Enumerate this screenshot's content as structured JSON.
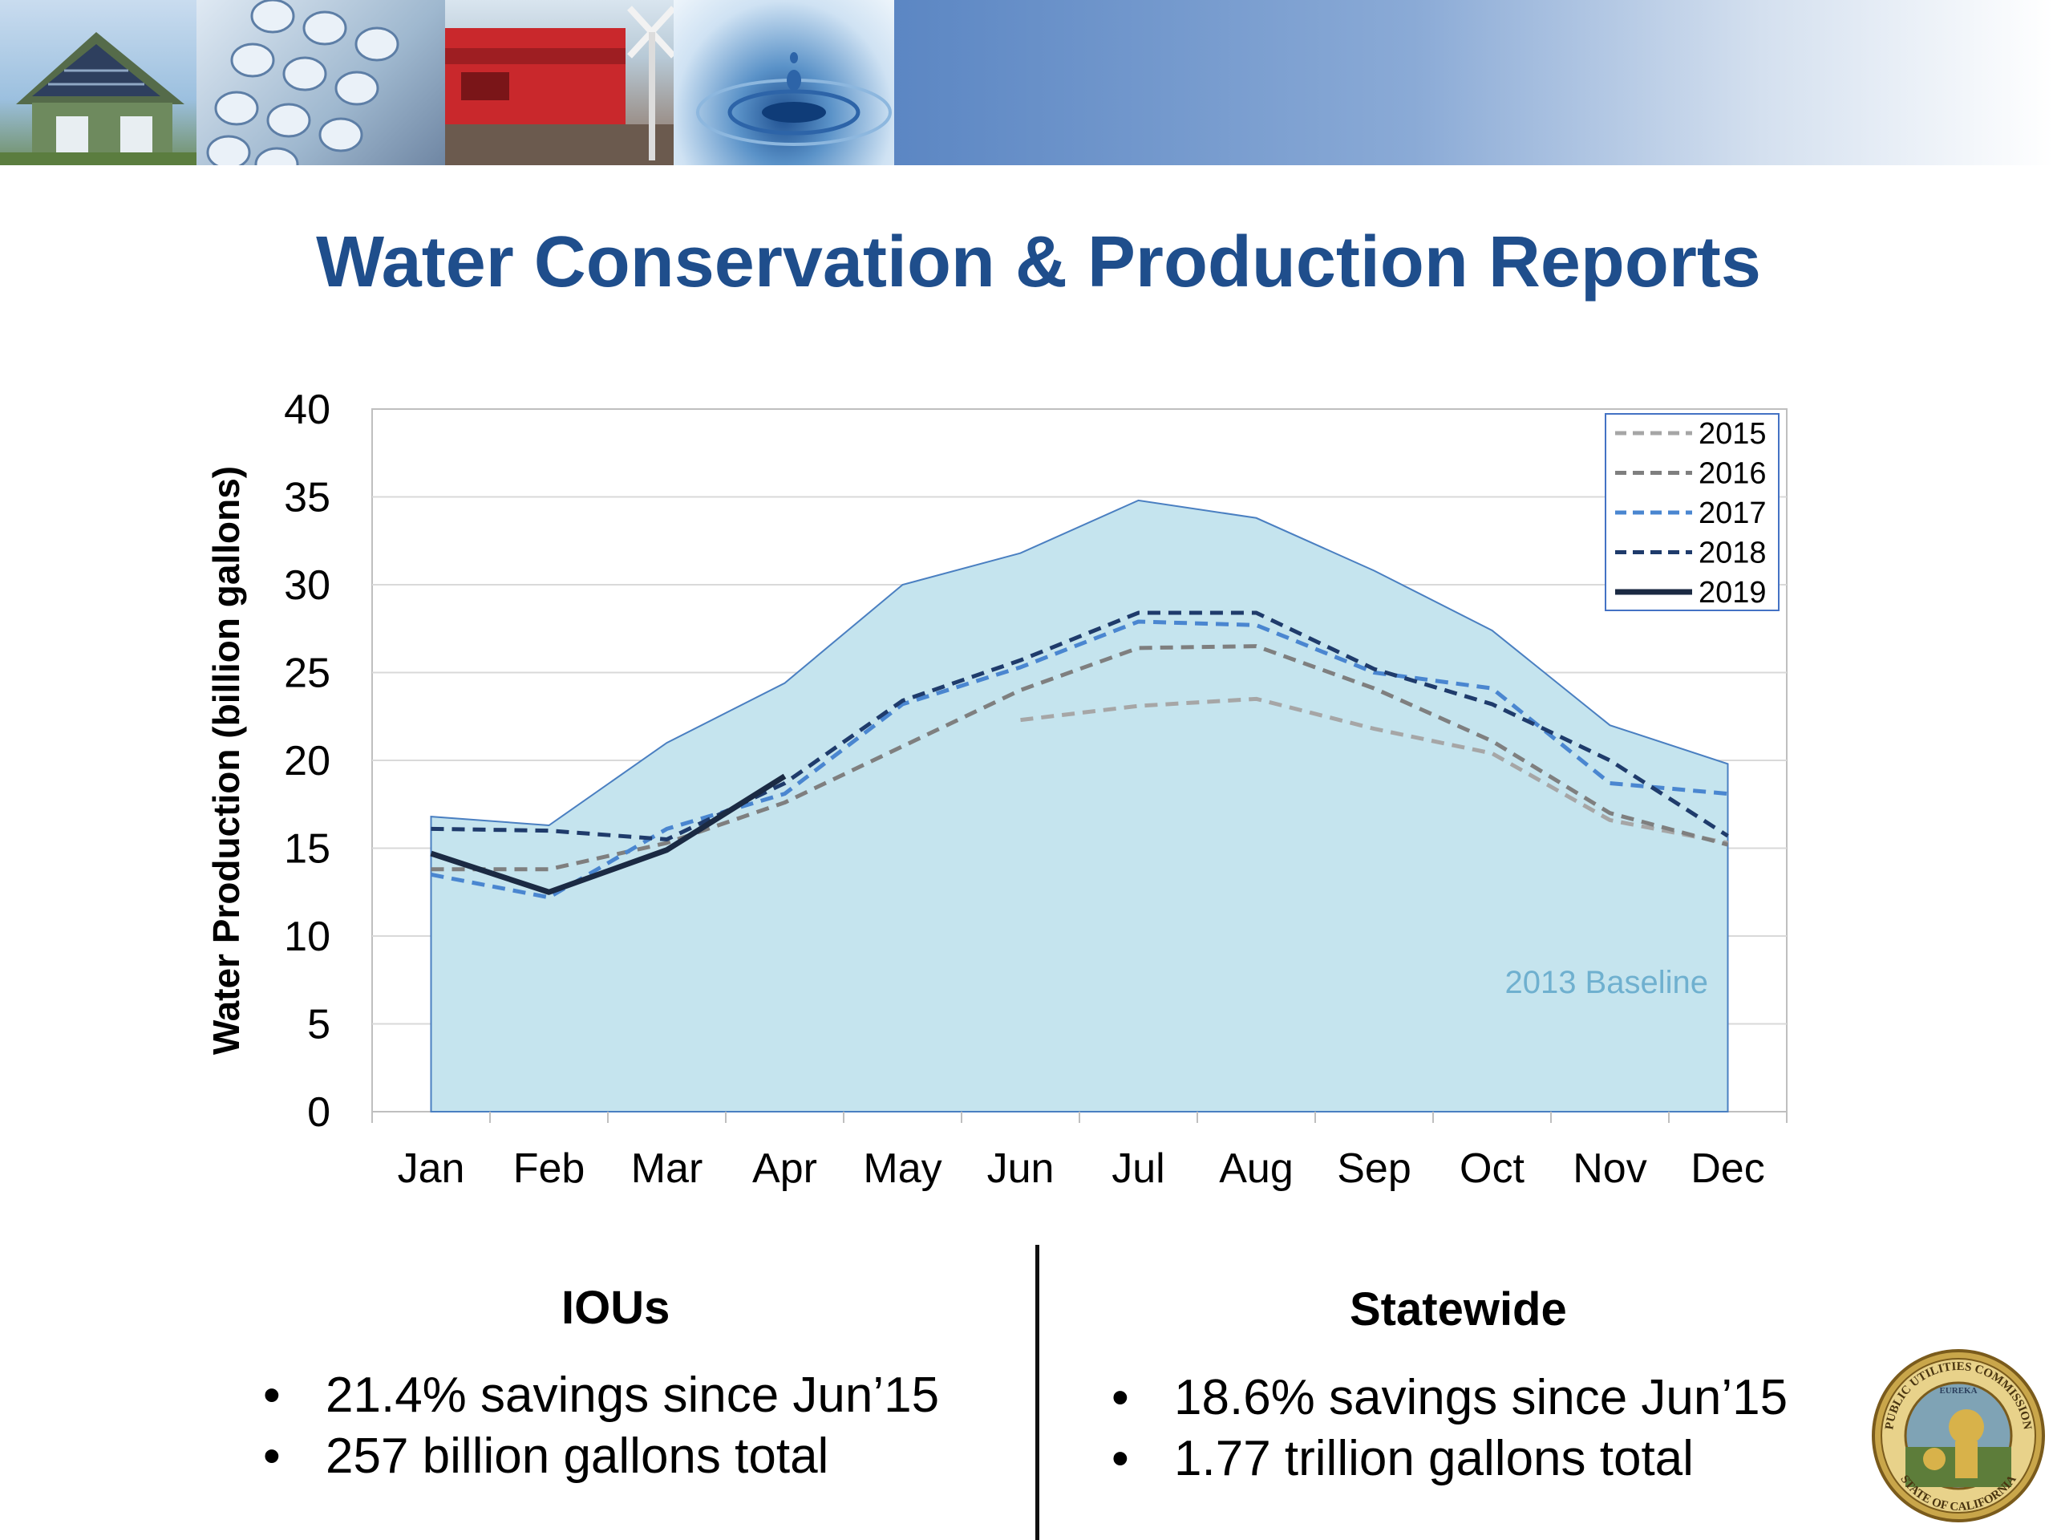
{
  "title": "Water Conservation & Production Reports",
  "chart_data": {
    "type": "line",
    "ylabel": "Water Production (billion gallons)",
    "xlabel": "",
    "ylim": [
      0,
      40
    ],
    "yticks": [
      0,
      5,
      10,
      15,
      20,
      25,
      30,
      35,
      40
    ],
    "categories": [
      "Jan",
      "Feb",
      "Mar",
      "Apr",
      "May",
      "Jun",
      "Jul",
      "Aug",
      "Sep",
      "Oct",
      "Nov",
      "Dec"
    ],
    "baseline": {
      "label": "2013 Baseline",
      "color": "#c5e4ee",
      "values": [
        16.8,
        16.3,
        21.0,
        24.4,
        30.0,
        31.8,
        34.8,
        33.8,
        30.8,
        27.4,
        22.0,
        19.8
      ]
    },
    "series": [
      {
        "name": "2015",
        "color": "#a6a6a6",
        "dash": "dashed",
        "values": [
          null,
          null,
          null,
          null,
          null,
          22.3,
          23.1,
          23.5,
          21.8,
          20.4,
          16.6,
          15.3
        ]
      },
      {
        "name": "2016",
        "color": "#7f7f7f",
        "dash": "dashed",
        "values": [
          13.8,
          13.8,
          15.3,
          17.6,
          20.8,
          24.0,
          26.4,
          26.5,
          24.1,
          21.1,
          17.0,
          15.2
        ]
      },
      {
        "name": "2017",
        "color": "#4a86d0",
        "dash": "dashed",
        "values": [
          13.5,
          12.2,
          16.1,
          18.1,
          23.2,
          25.3,
          27.9,
          27.7,
          25.0,
          24.1,
          18.7,
          18.1
        ]
      },
      {
        "name": "2018",
        "color": "#1f3b6b",
        "dash": "dashed",
        "values": [
          16.1,
          16.0,
          15.5,
          18.7,
          23.4,
          25.7,
          28.4,
          28.4,
          25.2,
          23.2,
          20.0,
          15.7
        ]
      },
      {
        "name": "2019",
        "color": "#1b2a43",
        "dash": "solid",
        "values": [
          14.7,
          12.5,
          14.9,
          19.1,
          null,
          null,
          null,
          null,
          null,
          null,
          null,
          null
        ]
      }
    ],
    "grid": true,
    "legend": "top-right"
  },
  "ious": {
    "heading": "IOUs",
    "bullets": [
      "21.4% savings since Jun’15",
      "257 billion gallons total"
    ]
  },
  "statewide": {
    "heading": "Statewide",
    "bullets": [
      "18.6% savings since Jun’15",
      "1.77 trillion gallons total"
    ]
  },
  "seal": {
    "top_text": "PUBLIC UTILITIES COMMISSION",
    "bottom_text": "STATE OF CALIFORNIA",
    "motto": "EUREKA"
  }
}
